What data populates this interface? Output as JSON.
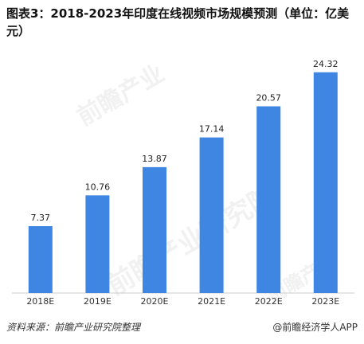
{
  "title": "图表3：2018-2023年印度在线视频市场规模预测（单位：亿美元）",
  "chart_data": {
    "type": "bar",
    "categories": [
      "2018E",
      "2019E",
      "2020E",
      "2021E",
      "2022E",
      "2023E"
    ],
    "values": [
      7.37,
      10.76,
      13.87,
      17.14,
      20.57,
      24.32
    ],
    "data_labels": [
      "7.37",
      "10.76",
      "13.87",
      "17.14",
      "20.57",
      "24.32"
    ],
    "title": "图表3：2018-2023年印度在线视频市场规模预测（单位：亿美元）",
    "xlabel": "",
    "ylabel": "",
    "ylim": [
      0,
      25
    ],
    "bar_color": "#3f86e3",
    "grid": false
  },
  "footer": {
    "source": "资料来源：前瞻产业研究院整理",
    "brand": "@前瞻经济学人APP"
  }
}
